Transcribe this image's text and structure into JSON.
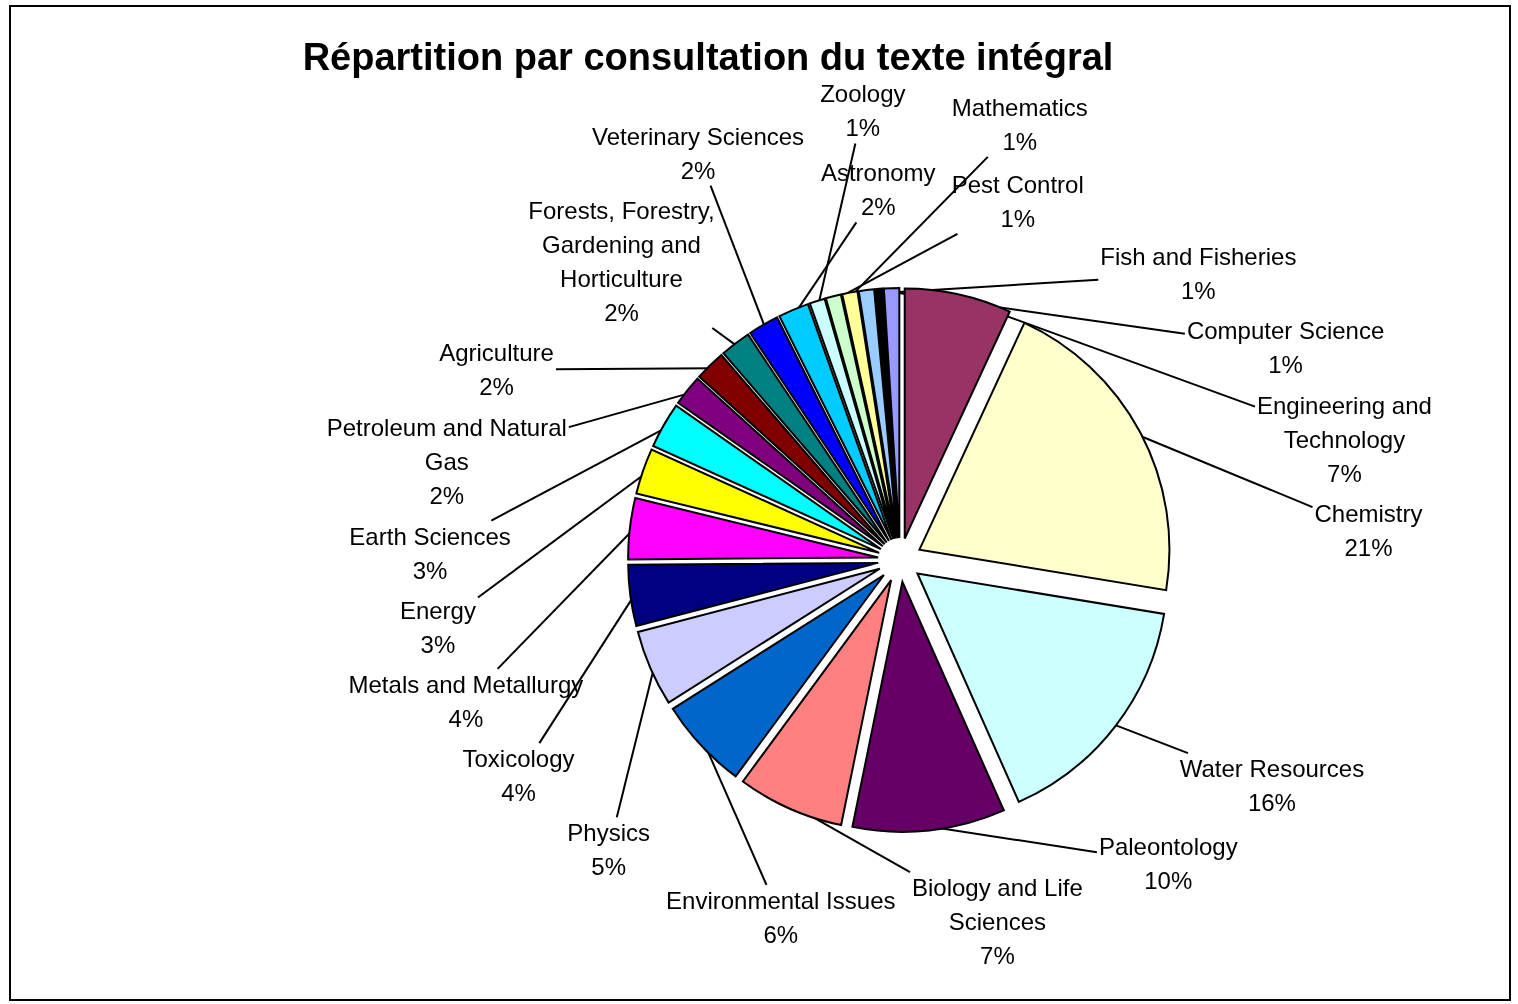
{
  "chart_data": {
    "type": "pie",
    "title": "Répartition par consultation du texte intégral",
    "categories": [
      "Engineering and Technology",
      "Chemistry",
      "Water Resources",
      "Paleontology",
      "Biology and Life Sciences",
      "Environmental Issues",
      "Physics",
      "Toxicology",
      "Metals and Metallurgy",
      "Energy",
      "Earth Sciences",
      "Petroleum and Natural Gas",
      "Agriculture",
      "Forests, Forestry, Gardening and Horticulture",
      "Veterinary Sciences",
      "Astronomy",
      "Zoology",
      "Pest Control",
      "Mathematics",
      "Fish and Fisheries",
      null,
      "Computer Science"
    ],
    "values": [
      7,
      21,
      16,
      10,
      7,
      6,
      5,
      4,
      4,
      3,
      3,
      2,
      2,
      2,
      2,
      2,
      1,
      1,
      1,
      1,
      0.5,
      1
    ],
    "value_labels": [
      "7%",
      "21%",
      "16%",
      "10%",
      "7%",
      "6%",
      "5%",
      "4%",
      "4%",
      "3%",
      "3%",
      "2%",
      "2%",
      "2%",
      "2%",
      "2%",
      "1%",
      "1%",
      "1%",
      "1%",
      null,
      "1%"
    ],
    "colors": [
      "#993366",
      "#ffffcc",
      "#ccffff",
      "#660066",
      "#ff8080",
      "#0066cc",
      "#ccccff",
      "#000080",
      "#ff00ff",
      "#ffff00",
      "#00ffff",
      "#800080",
      "#800000",
      "#008080",
      "#0000ff",
      "#00ccff",
      "#ccffff",
      "#ccffcc",
      "#ffff99",
      "#99ccff",
      "#000000",
      "#9999ff"
    ],
    "legend": false
  }
}
